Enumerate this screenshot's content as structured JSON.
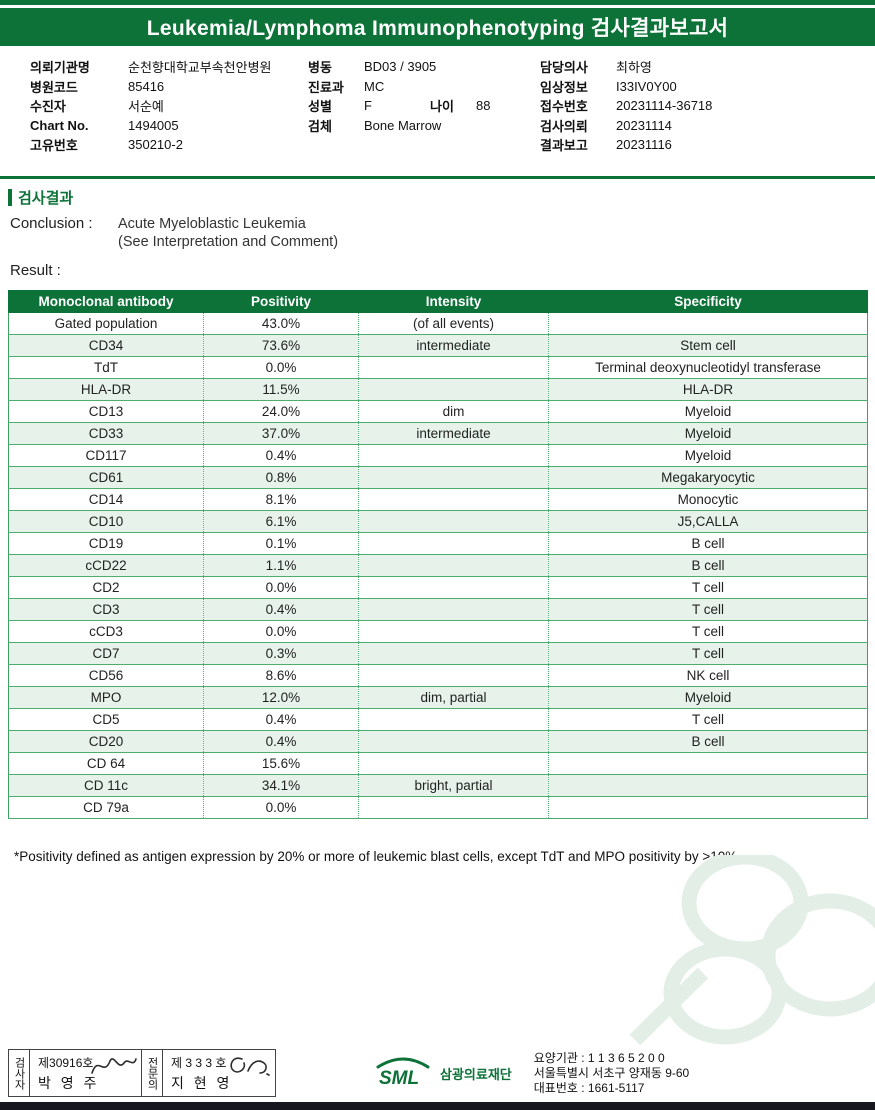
{
  "colors": {
    "primary_green": "#0C7238",
    "row_alt_green": "#E7F3EA",
    "table_border_green": "#4FAC70",
    "watermark_green": "#E3EFE6",
    "footer_bar_dark": "#17171F"
  },
  "header": {
    "title": "Leukemia/Lymphoma Immunophenotyping 검사결과보고서"
  },
  "patient_info": {
    "left": [
      {
        "label": "의뢰기관명",
        "value": "순천향대학교부속천안병원"
      },
      {
        "label": "병원코드",
        "value": "85416"
      },
      {
        "label": "수진자",
        "value": "서순예"
      },
      {
        "label": "Chart No.",
        "value": "1494005"
      },
      {
        "label": "고유번호",
        "value": "350210-2"
      }
    ],
    "middle": [
      {
        "label": "병동",
        "value": "BD03 / 3905"
      },
      {
        "label": "진료과",
        "value": "MC"
      },
      {
        "label": "성별",
        "value": "F",
        "label2": "나이",
        "value2": "88"
      },
      {
        "label": "검체",
        "value": "Bone Marrow"
      }
    ],
    "right": [
      {
        "label": "담당의사",
        "value": "최하영"
      },
      {
        "label": "임상정보",
        "value": "I33IV0Y00"
      },
      {
        "label": "접수번호",
        "value": "20231114-36718"
      },
      {
        "label": "검사의뢰",
        "value": "20231114"
      },
      {
        "label": "결과보고",
        "value": "20231116"
      }
    ]
  },
  "section": {
    "title": "검사결과",
    "conclusion_label": "Conclusion :",
    "conclusion_line1": "Acute Myeloblastic Leukemia",
    "conclusion_line2": "(See Interpretation and Comment)",
    "result_label": "Result :"
  },
  "table": {
    "headers": [
      "Monoclonal antibody",
      "Positivity",
      "Intensity",
      "Specificity"
    ],
    "rows": [
      [
        "Gated population",
        "43.0%",
        "(of all events)",
        ""
      ],
      [
        "CD34",
        "73.6%",
        "intermediate",
        "Stem cell"
      ],
      [
        "TdT",
        "0.0%",
        "",
        "Terminal deoxynucleotidyl transferase"
      ],
      [
        "HLA-DR",
        "11.5%",
        "",
        "HLA-DR"
      ],
      [
        "CD13",
        "24.0%",
        "dim",
        "Myeloid"
      ],
      [
        "CD33",
        "37.0%",
        "intermediate",
        "Myeloid"
      ],
      [
        "CD117",
        "0.4%",
        "",
        "Myeloid"
      ],
      [
        "CD61",
        "0.8%",
        "",
        "Megakaryocytic"
      ],
      [
        "CD14",
        "8.1%",
        "",
        "Monocytic"
      ],
      [
        "CD10",
        "6.1%",
        "",
        "J5,CALLA"
      ],
      [
        "CD19",
        "0.1%",
        "",
        "B cell"
      ],
      [
        "cCD22",
        "1.1%",
        "",
        "B cell"
      ],
      [
        "CD2",
        "0.0%",
        "",
        "T cell"
      ],
      [
        "CD3",
        "0.4%",
        "",
        "T cell"
      ],
      [
        "cCD3",
        "0.0%",
        "",
        "T cell"
      ],
      [
        "CD7",
        "0.3%",
        "",
        "T cell"
      ],
      [
        "CD56",
        "8.6%",
        "",
        "NK cell"
      ],
      [
        "MPO",
        "12.0%",
        "dim, partial",
        "Myeloid"
      ],
      [
        "CD5",
        "0.4%",
        "",
        "T cell"
      ],
      [
        "CD20",
        "0.4%",
        "",
        "B cell"
      ],
      [
        "CD 64",
        "15.6%",
        "",
        ""
      ],
      [
        "CD 11c",
        "34.1%",
        "bright, partial",
        ""
      ],
      [
        "CD 79a",
        "0.0%",
        "",
        ""
      ]
    ]
  },
  "footnote": "*Positivity defined as antigen expression by 20% or more of leukemic blast cells, except  TdT and MPO positivity by >10%",
  "footer": {
    "signers": [
      {
        "role": "검사자",
        "license": "제30916호",
        "name": "박 영 주"
      },
      {
        "role": "전문의",
        "license": "제 3 3 3 호",
        "name": "지 현 영"
      }
    ],
    "logo_text": "SML",
    "org_name": "삼광의료재단",
    "org_lines": [
      "요양기관 : 1 1 3 6 5 2 0 0",
      "서울특별시 서초구 양재동 9-60",
      "대표번호 : 1661-5117"
    ]
  }
}
